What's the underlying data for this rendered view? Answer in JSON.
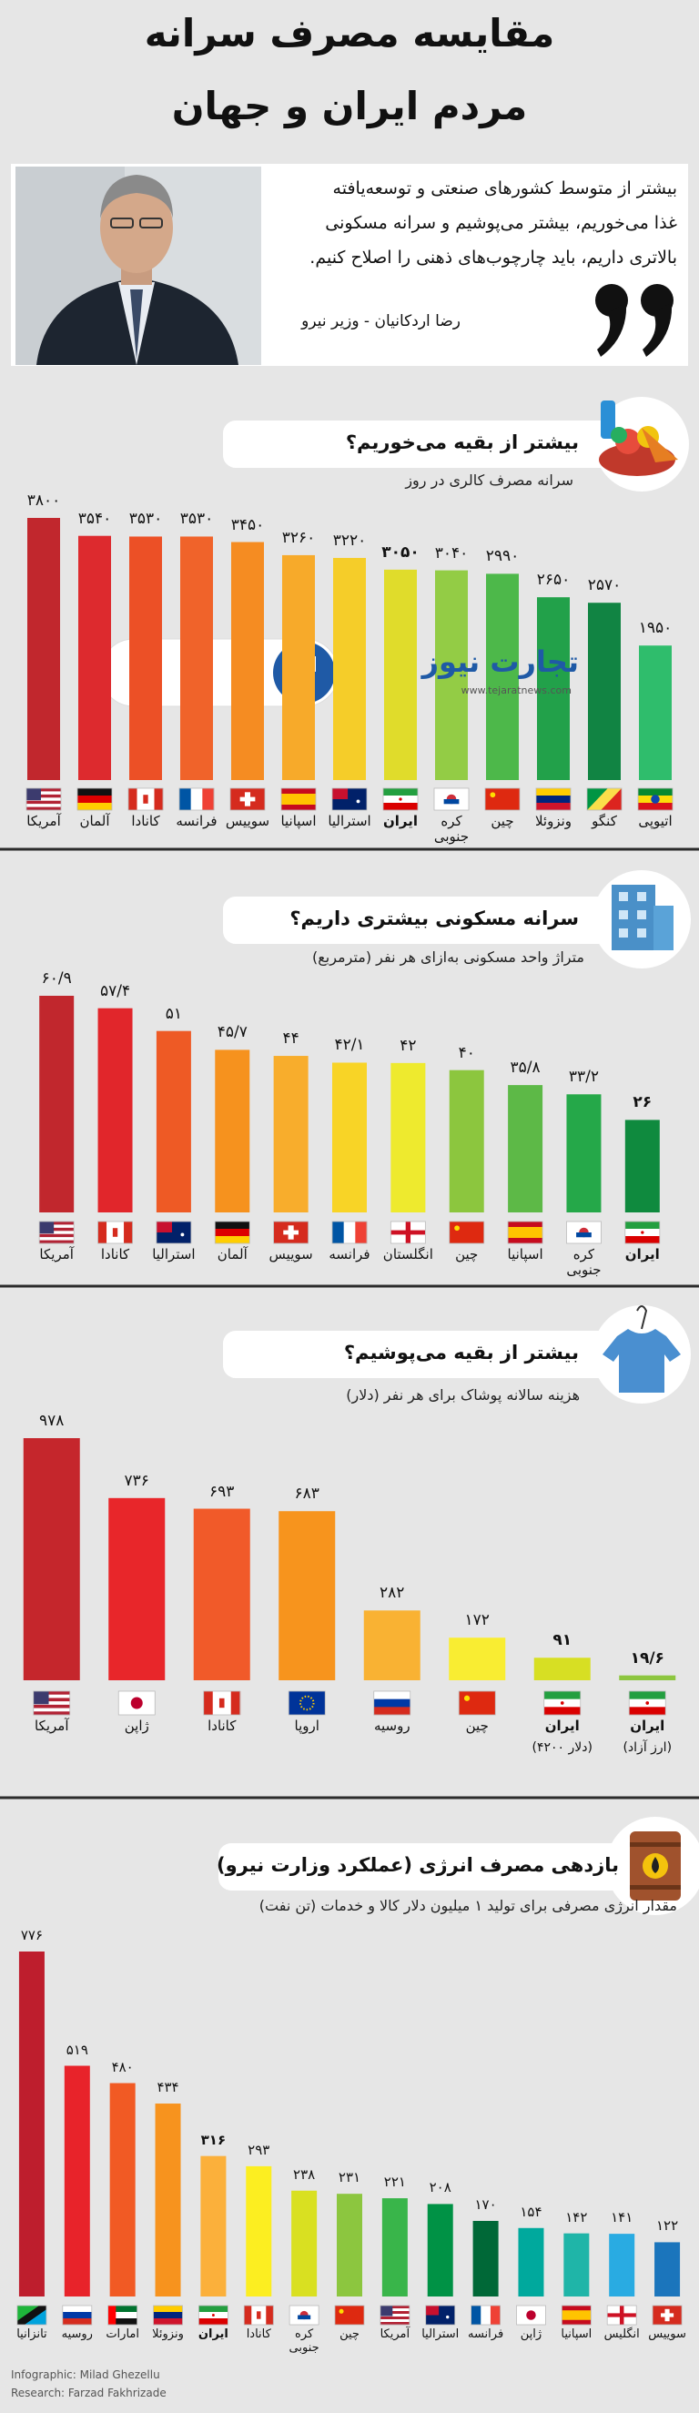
{
  "header": {
    "title": [
      "مقایسه مصرف سرانه",
      "مردم ایران و جهان"
    ]
  },
  "quote": {
    "lines": [
      "بیشتر از متوسط کشورهای صنعتی و توسعه‌یافته",
      "غذا می‌خوریم، بیشتر می‌پوشیم و سرانه مسکونی",
      "بالاتری داریم، باید چارچوب‌های ذهنی را اصلاح کنیم."
    ],
    "author": "رضا اردکانیان - وزیر نیرو"
  },
  "logo": {
    "name": "تجارت نیوز",
    "url": "www.tejaratnews.com"
  },
  "chart_data": [
    {
      "type": "bar",
      "title": "بیشتر از بقیه می‌خوریم؟",
      "subtitle": "سرانه مصرف کالری در روز",
      "categories": [
        "آمریکا",
        "آلمان",
        "کانادا",
        "فرانسه",
        "سوییس",
        "اسپانیا",
        "استرالیا",
        "ایران",
        "کره جنوبی",
        "چین",
        "ونزوئلا",
        "کنگو",
        "اتیوپی"
      ],
      "values": [
        3800,
        3540,
        3530,
        3530,
        3450,
        3260,
        3220,
        3050,
        3040,
        2990,
        2650,
        2570,
        1950
      ],
      "value_labels": [
        "۳۸۰۰",
        "۳۵۴۰",
        "۳۵۳۰",
        "۳۵۳۰",
        "۳۴۵۰",
        "۳۲۶۰",
        "۳۲۲۰",
        "۳۰۵۰",
        "۳۰۴۰",
        "۲۹۹۰",
        "۲۶۵۰",
        "۲۵۷۰",
        "۱۹۵۰"
      ],
      "colors": [
        "#c1272d",
        "#dd2a2e",
        "#ec5026",
        "#f0632a",
        "#f58c22",
        "#f7aa2a",
        "#f5cd29",
        "#e0dc2b",
        "#93cc45",
        "#4db84a",
        "#22a14a",
        "#118443",
        "#2fbd6c"
      ],
      "highlight": [
        7
      ],
      "ylim": [
        0,
        3800
      ]
    },
    {
      "type": "bar",
      "title": "سرانه مسکونی بیشتری داریم؟",
      "subtitle": "متراژ واحد مسکونی به‌ازای هر نفر (مترمربع)",
      "categories": [
        "آمریکا",
        "کانادا",
        "استرالیا",
        "آلمان",
        "سوییس",
        "فرانسه",
        "انگلستان",
        "چین",
        "اسپانیا",
        "کره جنوبی",
        "ایران"
      ],
      "values": [
        60.9,
        57.4,
        51,
        45.7,
        44,
        42.1,
        42,
        40,
        35.8,
        33.2,
        26
      ],
      "value_labels": [
        "۶۰/۹",
        "۵۷/۴",
        "۵۱",
        "۴۵/۷",
        "۴۴",
        "۴۲/۱",
        "۴۲",
        "۴۰",
        "۳۵/۸",
        "۳۳/۲",
        "۲۶"
      ],
      "colors": [
        "#c1272d",
        "#e1262b",
        "#ee5a25",
        "#f6921e",
        "#f8ad2c",
        "#f8d426",
        "#eeea2e",
        "#8cc63e",
        "#5db947",
        "#25a849",
        "#0f8a3e"
      ],
      "highlight": [
        10
      ],
      "ylim": [
        0,
        60.9
      ]
    },
    {
      "type": "bar",
      "title": "بیشتر از بقیه می‌پوشیم؟",
      "subtitle": "هزینه سالانه پوشاک برای هر نفر (دلار)",
      "categories": [
        "آمریکا",
        "ژاپن",
        "کانادا",
        "اروپا",
        "روسیه",
        "چین",
        "ایران",
        "ایران"
      ],
      "category_notes": [
        null,
        null,
        null,
        null,
        null,
        null,
        "(دلار ۴۲۰۰)",
        "(ارز آزاد)"
      ],
      "values": [
        978,
        736,
        693,
        683,
        282,
        172,
        91,
        19.6
      ],
      "value_labels": [
        "۹۷۸",
        "۷۳۶",
        "۶۹۳",
        "۶۸۳",
        "۲۸۲",
        "۱۷۲",
        "۹۱",
        "۱۹/۶"
      ],
      "colors": [
        "#c5262c",
        "#e8262a",
        "#f15a29",
        "#f7941d",
        "#f9b233",
        "#f9ed32",
        "#d7df23",
        "#8dc63f"
      ],
      "highlight": [
        6,
        7
      ],
      "ylim": [
        0,
        978
      ]
    },
    {
      "type": "bar",
      "title": "بازدهی مصرف انرژی (عملکرد وزارت نیرو)",
      "subtitle": "مقدار انرژی مصرفی برای تولید ۱ میلیون دلار کالا و خدمات (تن نفت)",
      "categories": [
        "تانزانیا",
        "روسیه",
        "امارات",
        "ونزوئلا",
        "ایران",
        "کانادا",
        "کره جنوبی",
        "چین",
        "آمریکا",
        "استرالیا",
        "فرانسه",
        "ژاپن",
        "اسپانیا",
        "انگلیس",
        "سوییس"
      ],
      "values": [
        776,
        519,
        480,
        434,
        316,
        293,
        238,
        231,
        221,
        208,
        170,
        154,
        142,
        141,
        122
      ],
      "value_labels": [
        "۷۷۶",
        "۵۱۹",
        "۴۸۰",
        "۴۳۴",
        "۳۱۶",
        "۲۹۳",
        "۲۳۸",
        "۲۳۱",
        "۲۲۱",
        "۲۰۸",
        "۱۷۰",
        "۱۵۴",
        "۱۴۲",
        "۱۴۱",
        "۱۲۲"
      ],
      "colors": [
        "#be1e2d",
        "#e8232a",
        "#f15a24",
        "#f7931e",
        "#fbb03b",
        "#fcee21",
        "#d9e021",
        "#8cc63f",
        "#39b54a",
        "#009245",
        "#006837",
        "#00a99d",
        "#1fb5a8",
        "#29abe2",
        "#1b75bc"
      ],
      "highlight": [
        4
      ],
      "ylim": [
        0,
        776
      ]
    }
  ],
  "footer": [
    "Infographic: Milad Ghezellu",
    "Research: Farzad Fakhrizade"
  ]
}
